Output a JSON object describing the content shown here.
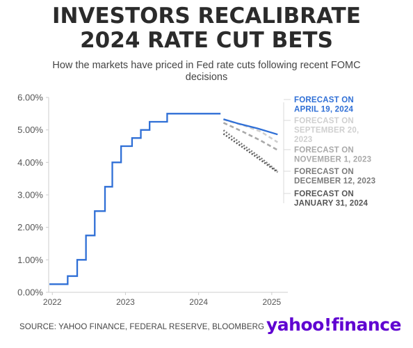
{
  "header": {
    "title_line1": "INVESTORS RECALIBRATE",
    "title_line2": "2024 RATE CUT BETS",
    "subtitle_line1": "How the markets have priced in Fed rate cuts following recent FOMC",
    "subtitle_line2": "decisions"
  },
  "footer": {
    "source": "SOURCE: YAHOO FINANCE, FEDERAL RESERVE, BLOOMBERG",
    "logo": "yahoo!finance"
  },
  "colors": {
    "history": "#2f6fd6",
    "apr": "#2f6fd6",
    "sep": "#cfcfcf",
    "nov": "#a9a9a9",
    "dec": "#7a7a7a",
    "jan": "#555555",
    "axis": "#cccccc",
    "logo": "#5f01d1"
  },
  "chart_data": {
    "type": "line",
    "ylim": [
      0,
      6
    ],
    "xlim": [
      2021.95,
      2025.22
    ],
    "y_ticks": [
      0,
      1,
      2,
      3,
      4,
      5,
      6
    ],
    "y_tick_labels": [
      "0.00%",
      "1.00%",
      "2.00%",
      "3.00%",
      "4.00%",
      "5.00%",
      "6.00%"
    ],
    "x_ticks": [
      2022,
      2023,
      2024,
      2025
    ],
    "x_tick_labels": [
      "2022",
      "2023",
      "2024",
      "2025"
    ],
    "history": {
      "style": "step",
      "x": [
        2021.96,
        2022.21,
        2022.34,
        2022.46,
        2022.58,
        2022.72,
        2022.82,
        2022.94,
        2023.09,
        2023.21,
        2023.33,
        2023.57,
        2024.3
      ],
      "y": [
        0.25,
        0.5,
        1.0,
        1.75,
        2.5,
        3.25,
        4.0,
        4.5,
        4.75,
        5.0,
        5.25,
        5.5,
        5.5
      ]
    },
    "series": [
      {
        "key": "apr",
        "label_lines": [
          "FORECAST ON",
          "APRIL 19, 2024"
        ],
        "dash": "solid",
        "x": [
          2024.34,
          2024.55,
          2024.8,
          2025.08
        ],
        "y": [
          5.33,
          5.19,
          5.05,
          4.86
        ]
      },
      {
        "key": "sep",
        "label_lines": [
          "FORECAST ON",
          "SEPTEMBER 20,",
          "2023"
        ],
        "dash": "dashed",
        "x": [
          2024.34,
          2024.6,
          2024.85,
          2025.08
        ],
        "y": [
          5.32,
          5.15,
          4.95,
          4.62
        ]
      },
      {
        "key": "nov",
        "label_lines": [
          "FORECAST ON",
          "NOVEMBER 1, 2023"
        ],
        "dash": "dashed",
        "x": [
          2024.34,
          2024.6,
          2024.85,
          2025.08
        ],
        "y": [
          5.22,
          4.95,
          4.67,
          4.38
        ]
      },
      {
        "key": "dec",
        "label_lines": [
          "FORECAST ON",
          "DECEMBER 12, 2023"
        ],
        "dash": "dotted",
        "x": [
          2024.34,
          2024.6,
          2024.85,
          2025.08
        ],
        "y": [
          4.99,
          4.55,
          4.14,
          3.72
        ]
      },
      {
        "key": "jan",
        "label_lines": [
          "FORECAST ON",
          "JANUARY 31, 2024"
        ],
        "dash": "dotted",
        "x": [
          2024.34,
          2024.6,
          2024.85,
          2025.08
        ],
        "y": [
          4.88,
          4.47,
          4.07,
          3.7
        ]
      }
    ]
  }
}
